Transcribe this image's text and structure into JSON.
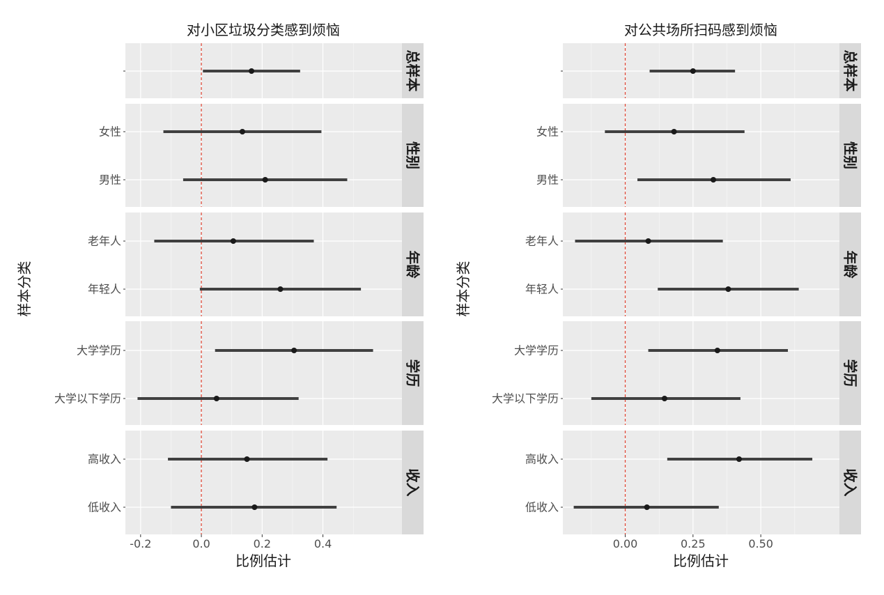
{
  "chart_data": [
    {
      "type": "errorbar",
      "title": "对小区垃圾分类感到烦恼",
      "xlabel": "比例估计",
      "ylabel": "样本分类",
      "xlim": [
        -0.25,
        0.66
      ],
      "xticks": [
        -0.2,
        0.0,
        0.2,
        0.4
      ],
      "xtick_labels": [
        "-0.2",
        "0.0",
        "0.2",
        "0.4"
      ],
      "reference_line": 0,
      "grid": true,
      "facets": [
        {
          "label": "总样本",
          "rows": [
            {
              "category": "",
              "estimate": 0.165,
              "low": 0.005,
              "high": 0.325
            }
          ]
        },
        {
          "label": "性别",
          "rows": [
            {
              "category": "女性",
              "estimate": 0.135,
              "low": -0.125,
              "high": 0.395
            },
            {
              "category": "男性",
              "estimate": 0.21,
              "low": -0.06,
              "high": 0.48
            }
          ]
        },
        {
          "label": "年龄",
          "rows": [
            {
              "category": "老年人",
              "estimate": 0.105,
              "low": -0.155,
              "high": 0.37
            },
            {
              "category": "年轻人",
              "estimate": 0.26,
              "low": -0.005,
              "high": 0.525
            }
          ]
        },
        {
          "label": "学历",
          "rows": [
            {
              "category": "大学学历",
              "estimate": 0.305,
              "low": 0.045,
              "high": 0.565
            },
            {
              "category": "大学以下学历",
              "estimate": 0.05,
              "low": -0.21,
              "high": 0.32
            }
          ]
        },
        {
          "label": "收入",
          "rows": [
            {
              "category": "高收入",
              "estimate": 0.15,
              "low": -0.11,
              "high": 0.415
            },
            {
              "category": "低收入",
              "estimate": 0.175,
              "low": -0.1,
              "high": 0.445
            }
          ]
        }
      ]
    },
    {
      "type": "errorbar",
      "title": "对公共场所扫码感到烦恼",
      "xlabel": "比例估计",
      "ylabel": "样本分类",
      "xlim": [
        -0.23,
        0.79
      ],
      "xticks": [
        0.0,
        0.25,
        0.5
      ],
      "xtick_labels": [
        "0.00",
        "0.25",
        "0.50"
      ],
      "reference_line": 0,
      "grid": true,
      "facets": [
        {
          "label": "总样本",
          "rows": [
            {
              "category": "",
              "estimate": 0.25,
              "low": 0.09,
              "high": 0.405
            }
          ]
        },
        {
          "label": "性别",
          "rows": [
            {
              "category": "女性",
              "estimate": 0.18,
              "low": -0.075,
              "high": 0.44
            },
            {
              "category": "男性",
              "estimate": 0.325,
              "low": 0.045,
              "high": 0.61
            }
          ]
        },
        {
          "label": "年龄",
          "rows": [
            {
              "category": "老年人",
              "estimate": 0.085,
              "low": -0.185,
              "high": 0.36
            },
            {
              "category": "年轻人",
              "estimate": 0.38,
              "low": 0.12,
              "high": 0.64
            }
          ]
        },
        {
          "label": "学历",
          "rows": [
            {
              "category": "大学学历",
              "estimate": 0.34,
              "low": 0.085,
              "high": 0.6
            },
            {
              "category": "大学以下学历",
              "estimate": 0.145,
              "low": -0.125,
              "high": 0.425
            }
          ]
        },
        {
          "label": "收入",
          "rows": [
            {
              "category": "高收入",
              "estimate": 0.42,
              "low": 0.155,
              "high": 0.69
            },
            {
              "category": "低收入",
              "estimate": 0.08,
              "low": -0.19,
              "high": 0.345
            }
          ]
        }
      ]
    }
  ],
  "colors": {
    "panel_background": "#ebebeb",
    "grid": "#ffffff",
    "strip_background": "#d9d9d9",
    "errorbar": "#404040",
    "point": "#1a1a1a",
    "reference_line": "#e0412f",
    "text": "#4d4d4d",
    "title": "#1a1a1a"
  }
}
